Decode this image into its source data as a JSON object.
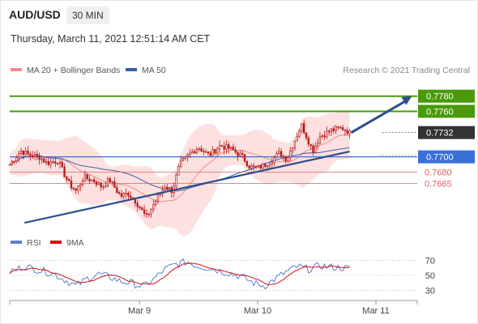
{
  "header": {
    "symbol": "AUD/USD",
    "timeframe": "30 MIN",
    "datetime": "Thursday, March 11, 2021 12:51:14 AM CET"
  },
  "legend": {
    "bollinger": "MA 20 + Bollinger Bands",
    "ma50": "MA 50",
    "credit": "Research © 2021 Trading Central",
    "rsi": "RSI",
    "rsi_ma": "9MA"
  },
  "colors": {
    "candle": "#b71c1c",
    "bollinger_line": "#f48a8a",
    "bollinger_fill": "#fde0e0",
    "ma50": "#3b5ea8",
    "trendline": "#2b4e8c",
    "resistance": "#4a9a0a",
    "support": "#3a6fd8",
    "minor_support": "#e06060",
    "current_price": "#333333",
    "rsi": "#5b7fd0",
    "rsi_ma": "#d01010"
  },
  "chart_data": {
    "type": "candlestick",
    "x_labels": [
      "Mar 9",
      "Mar 10",
      "Mar 11"
    ],
    "ylim": [
      0.7612,
      0.78
    ],
    "levels": [
      {
        "label": "0.7780",
        "value": 0.778,
        "kind": "resistance"
      },
      {
        "label": "0.7760",
        "value": 0.776,
        "kind": "resistance"
      },
      {
        "label": "0.7732",
        "value": 0.7732,
        "kind": "current"
      },
      {
        "label": "0.7700",
        "value": 0.77,
        "kind": "support"
      },
      {
        "label": "0.7680",
        "value": 0.768,
        "kind": "minor"
      },
      {
        "label": "0.7665",
        "value": 0.7665,
        "kind": "minor"
      }
    ],
    "trendline": {
      "from": [
        0.04,
        0.7613
      ],
      "to": [
        0.92,
        0.7707
      ]
    },
    "forecast_arrow": {
      "from": [
        0.92,
        0.7732
      ],
      "to": [
        0.99,
        0.778
      ]
    },
    "path_points": [
      [
        0.0,
        0.769
      ],
      [
        0.03,
        0.7708
      ],
      [
        0.05,
        0.7703
      ],
      [
        0.08,
        0.77
      ],
      [
        0.1,
        0.7692
      ],
      [
        0.13,
        0.7695
      ],
      [
        0.16,
        0.7665
      ],
      [
        0.18,
        0.7655
      ],
      [
        0.2,
        0.7673
      ],
      [
        0.23,
        0.7668
      ],
      [
        0.25,
        0.766
      ],
      [
        0.27,
        0.767
      ],
      [
        0.3,
        0.7648
      ],
      [
        0.32,
        0.7652
      ],
      [
        0.34,
        0.7642
      ],
      [
        0.37,
        0.762
      ],
      [
        0.39,
        0.7638
      ],
      [
        0.42,
        0.7662
      ],
      [
        0.44,
        0.7655
      ],
      [
        0.46,
        0.769
      ],
      [
        0.49,
        0.7705
      ],
      [
        0.51,
        0.7713
      ],
      [
        0.54,
        0.7702
      ],
      [
        0.57,
        0.7715
      ],
      [
        0.6,
        0.771
      ],
      [
        0.63,
        0.77
      ],
      [
        0.65,
        0.7687
      ],
      [
        0.67,
        0.7685
      ],
      [
        0.7,
        0.7692
      ],
      [
        0.73,
        0.7705
      ],
      [
        0.75,
        0.7697
      ],
      [
        0.77,
        0.772
      ],
      [
        0.79,
        0.7742
      ],
      [
        0.82,
        0.7708
      ],
      [
        0.84,
        0.7727
      ],
      [
        0.87,
        0.7735
      ],
      [
        0.9,
        0.7738
      ],
      [
        0.92,
        0.7732
      ]
    ],
    "rsi": {
      "ylim": [
        20,
        80
      ],
      "ticks": [
        70,
        50,
        30
      ],
      "path_points": [
        [
          0.0,
          55
        ],
        [
          0.04,
          62
        ],
        [
          0.08,
          57
        ],
        [
          0.12,
          52
        ],
        [
          0.15,
          44
        ],
        [
          0.18,
          36
        ],
        [
          0.21,
          46
        ],
        [
          0.24,
          52
        ],
        [
          0.27,
          48
        ],
        [
          0.3,
          42
        ],
        [
          0.33,
          40
        ],
        [
          0.36,
          35
        ],
        [
          0.39,
          45
        ],
        [
          0.42,
          58
        ],
        [
          0.45,
          65
        ],
        [
          0.48,
          68
        ],
        [
          0.51,
          62
        ],
        [
          0.54,
          60
        ],
        [
          0.57,
          56
        ],
        [
          0.6,
          52
        ],
        [
          0.63,
          48
        ],
        [
          0.66,
          40
        ],
        [
          0.69,
          36
        ],
        [
          0.72,
          46
        ],
        [
          0.75,
          55
        ],
        [
          0.78,
          62
        ],
        [
          0.81,
          58
        ],
        [
          0.84,
          63
        ],
        [
          0.87,
          61
        ],
        [
          0.9,
          60
        ],
        [
          0.92,
          59
        ]
      ]
    }
  }
}
